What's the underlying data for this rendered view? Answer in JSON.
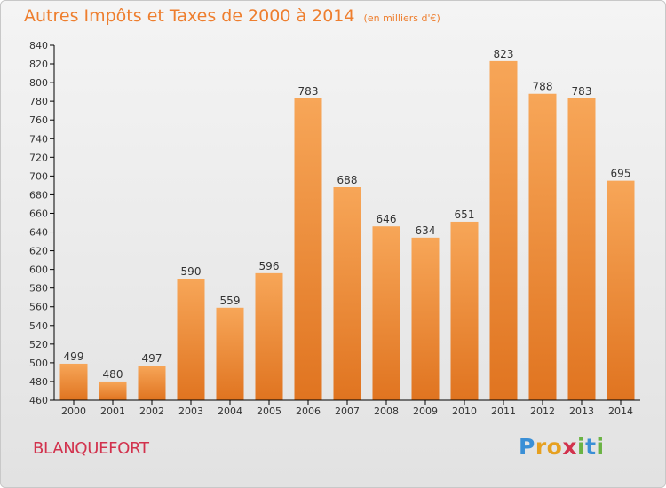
{
  "title": "Autres Impôts et Taxes de 2000 à 2014",
  "subtitle": "(en milliers d'€)",
  "place": "BLANQUEFORT",
  "logo": {
    "text": "Proxiti",
    "letters": [
      {
        "ch": "P",
        "color": "#3a8fd6"
      },
      {
        "ch": "r",
        "color": "#e6a020"
      },
      {
        "ch": "o",
        "color": "#e6a020"
      },
      {
        "ch": "x",
        "color": "#d2324d"
      },
      {
        "ch": "i",
        "color": "#6ab344"
      },
      {
        "ch": "t",
        "color": "#3a8fd6"
      },
      {
        "ch": "i",
        "color": "#6ab344"
      }
    ]
  },
  "colors": {
    "bar_top": "#f7a658",
    "bar_bottom": "#e07420",
    "axis": "#000000",
    "grid": "#cfcfcf",
    "title": "#ee7e2e",
    "place": "#d2324d"
  },
  "chart_data": {
    "type": "bar",
    "categories": [
      "2000",
      "2001",
      "2002",
      "2003",
      "2004",
      "2005",
      "2006",
      "2007",
      "2008",
      "2009",
      "2010",
      "2011",
      "2012",
      "2013",
      "2014"
    ],
    "values": [
      499,
      480,
      497,
      590,
      559,
      596,
      783,
      688,
      646,
      634,
      651,
      823,
      788,
      783,
      695
    ],
    "ylim": [
      460,
      840
    ],
    "ytick_step": 20,
    "data_labels": true,
    "grid": false,
    "xlabel": "",
    "ylabel": ""
  }
}
